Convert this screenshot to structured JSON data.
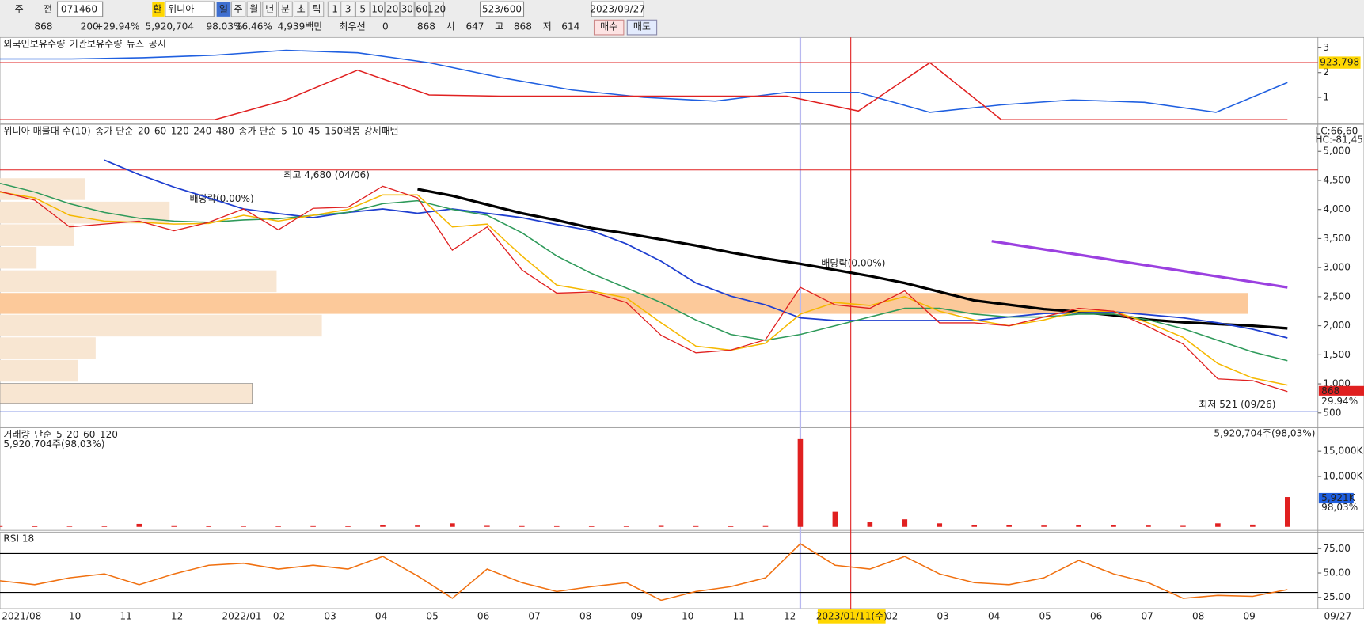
{
  "toolbar": {
    "row1": [
      "주",
      "전",
      "071460",
      "환",
      "위니아",
      "일",
      "주",
      "월",
      "년",
      "분",
      "초",
      "틱",
      "1",
      "3",
      "5",
      "10",
      "20",
      "30",
      "60",
      "120",
      "523/600",
      "2023/09/27"
    ],
    "row2": [
      "868",
      "200",
      "+29.94%",
      "5,920,704",
      "98.03%",
      "16.46%",
      "4,939백만",
      "최우선",
      "0",
      "868",
      "시",
      "647",
      "고",
      "868",
      "저",
      "614",
      "매수",
      "매도"
    ]
  },
  "x_axis": {
    "categories": [
      "2021/08",
      null,
      "10",
      "11",
      "12",
      "2022/01",
      "02",
      "03",
      "04",
      "05",
      "06",
      "07",
      "08",
      "09",
      "10",
      "11",
      "12",
      null,
      "02",
      "03",
      "04",
      "05",
      "06",
      "07",
      "08",
      "09"
    ],
    "cursor_label": "2023/01/11(수)",
    "end_label": "09/27"
  },
  "chart_data": [
    {
      "type": "line",
      "legend": [
        {
          "text": "외국인보유수량",
          "color": "#1f3fd0"
        },
        {
          "text": "기관보유수량",
          "color": "#e02020"
        },
        {
          "text": "뉴스",
          "color": "#888888"
        },
        {
          "text": "공시",
          "color": "#bbbbbb"
        }
      ],
      "ylim": [
        -0.05,
        3.42
      ],
      "yticks": [
        3,
        2,
        1
      ],
      "value_box": "923,798",
      "series": [
        {
          "color": "#1f5fe0",
          "values": [
            2.55,
            2.55,
            2.6,
            2.7,
            2.9,
            2.8,
            2.4,
            1.8,
            1.3,
            1.0,
            0.85,
            1.2,
            1.2,
            0.4,
            0.7,
            0.9,
            0.8,
            0.4,
            1.6
          ]
        },
        {
          "color": "#e02020",
          "values": [
            0.1,
            0.1,
            0.1,
            0.1,
            0.9,
            2.1,
            1.1,
            1.05,
            1.05,
            1.05,
            1.05,
            1.05,
            0.45,
            2.4,
            0.1,
            0.1,
            0.1,
            0.1,
            0.1
          ]
        }
      ]
    },
    {
      "type": "line",
      "legend": [
        {
          "text": "위니아 매물대 수(10)",
          "color": "#333333"
        },
        {
          "text": "종가 단순",
          "color": "#e02020"
        },
        {
          "text": "20",
          "color": "#f5b800"
        },
        {
          "text": "60",
          "color": "#2e9a5a"
        },
        {
          "text": "120",
          "color": "#1f3fd0"
        },
        {
          "text": "240",
          "color": "#000000"
        },
        {
          "text": "480",
          "color": "#b040e0"
        },
        {
          "text": "종가 단순",
          "color": "#e02020"
        },
        {
          "text": "5",
          "color": "#e02020"
        },
        {
          "text": "10",
          "color": "#1f3fd0"
        },
        {
          "text": "45",
          "color": "#f5b800"
        },
        {
          "text": "150억봉 강세패턴",
          "color": "#333333"
        }
      ],
      "ylim": [
        260,
        5465
      ],
      "yticks": [
        {
          "value": 5000,
          "label": "5,000"
        },
        {
          "value": 4500,
          "label": "4,500"
        },
        {
          "value": 4000,
          "label": "4,000"
        },
        {
          "value": 3500,
          "label": "3,500"
        },
        {
          "value": 3000,
          "label": "3,000"
        },
        {
          "value": 2500,
          "label": "2,500"
        },
        {
          "value": 2000,
          "label": "2,000"
        },
        {
          "value": 1500,
          "label": "1,500"
        },
        {
          "value": 1000,
          "label": "1,000"
        },
        500
      ],
      "corner_labels": [
        "LC:66,60",
        "HC:-81,45"
      ],
      "last_price": "868",
      "last_change": "29.94%",
      "series": [
        {
          "color": "#000000",
          "width": 3,
          "values": [
            null,
            null,
            null,
            null,
            null,
            null,
            null,
            null,
            null,
            null,
            null,
            null,
            4350,
            4235,
            4085,
            3935,
            3815,
            3680,
            3590,
            3485,
            3380,
            3260,
            3155,
            3065,
            2960,
            2855,
            2735,
            2585,
            2435,
            2360,
            2285,
            2240,
            2180,
            2105,
            2060,
            2030,
            2000,
            1955
          ]
        },
        {
          "color": "#1f3fd0",
          "width": 1.6,
          "values": [
            null,
            null,
            null,
            4850,
            4600,
            4385,
            4200,
            4010,
            3930,
            3860,
            3950,
            4010,
            3935,
            4010,
            3935,
            3860,
            3740,
            3635,
            3410,
            3110,
            2735,
            2510,
            2360,
            2135,
            2090,
            2090,
            2090,
            2090,
            2090,
            2150,
            2210,
            2220,
            2240,
            2190,
            2135,
            2050,
            1940,
            1790
          ]
        },
        {
          "color": "#2e9a5a",
          "width": 1.4,
          "values": [
            4450,
            4300,
            4100,
            3950,
            3850,
            3800,
            3780,
            3820,
            3840,
            3900,
            3950,
            4100,
            4150,
            4000,
            3900,
            3600,
            3200,
            2900,
            2650,
            2400,
            2100,
            1850,
            1750,
            1850,
            2000,
            2150,
            2300,
            2300,
            2200,
            2150,
            2150,
            2200,
            2200,
            2100,
            1950,
            1750,
            1550,
            1400
          ]
        },
        {
          "color": "#f5b800",
          "width": 1.4,
          "values": [
            4300,
            4200,
            3900,
            3800,
            3780,
            3750,
            3760,
            3900,
            3800,
            3900,
            4000,
            4250,
            4250,
            3700,
            3750,
            3200,
            2700,
            2600,
            2480,
            2050,
            1650,
            1580,
            1700,
            2200,
            2400,
            2350,
            2500,
            2250,
            2100,
            2000,
            2100,
            2250,
            2250,
            2050,
            1800,
            1350,
            1100,
            980
          ]
        },
        {
          "color": "#e02020",
          "width": 1.2,
          "values": [
            4310,
            4160,
            3700,
            3750,
            3800,
            3635,
            3780,
            4010,
            3650,
            4020,
            4040,
            4400,
            4200,
            3300,
            3700,
            2960,
            2560,
            2580,
            2400,
            1835,
            1535,
            1580,
            1760,
            2660,
            2360,
            2300,
            2600,
            2050,
            2050,
            2000,
            2150,
            2300,
            2250,
            1985,
            1685,
            1085,
            1055,
            868
          ]
        }
      ],
      "trendline": {
        "color": "#9b40e0",
        "values": [
          3455,
          2660
        ]
      },
      "hlines": [
        {
          "value": 4680,
          "color": "#e02020",
          "label": "최고 4,680 (04/06)"
        },
        {
          "value": 521,
          "color": "#1f3fd0",
          "label": "최저 521 (09/26)"
        }
      ],
      "annotations": [
        "배당락(0.00%)",
        "배당락(0.00%)"
      ]
    },
    {
      "type": "bar",
      "legend": [
        {
          "text": "거래량",
          "color": "#333333"
        },
        {
          "text": "단순",
          "color": "#e02020"
        },
        {
          "text": "5",
          "color": "#c020c0"
        },
        {
          "text": "20",
          "color": "#f5b800"
        },
        {
          "text": "60",
          "color": "#2e9a5a"
        },
        {
          "text": "120",
          "color": "#888888"
        }
      ],
      "info_left": "5,920,704주(98,03%)",
      "info_right": "5,920,704주(98,03%)",
      "ylim": [
        -690,
        19655
      ],
      "yticks": [
        {
          "value": 15000,
          "label": "15,000K"
        },
        {
          "value": 10000,
          "label": "10,000K"
        }
      ],
      "value_box": "5,921K",
      "value_pct": "98,03%",
      "values": [
        150,
        120,
        100,
        110,
        600,
        150,
        120,
        100,
        110,
        140,
        120,
        300,
        250,
        700,
        200,
        150,
        130,
        120,
        110,
        200,
        140,
        120,
        160,
        17400,
        3000,
        900,
        1500,
        700,
        400,
        300,
        250,
        350,
        300,
        250,
        200,
        700,
        450,
        5920.704
      ],
      "color": "#e02020"
    },
    {
      "type": "line",
      "legend": [
        {
          "text": "RSI 18",
          "color": "#e02020"
        }
      ],
      "ylim": [
        13.4,
        92
      ],
      "yticks": [
        {
          "value": 75,
          "label": "75.00"
        },
        {
          "value": 50,
          "label": "50.00"
        },
        {
          "value": 25,
          "label": "25.00"
        }
      ],
      "hlines": [
        70,
        30
      ],
      "series": [
        {
          "color": "#f07010",
          "width": 1.4,
          "values": [
            42,
            38,
            45,
            49,
            38,
            49,
            58,
            60,
            54,
            58,
            54,
            67,
            47,
            24,
            54,
            40,
            31,
            36,
            40,
            22,
            31,
            36,
            45,
            80,
            58,
            54,
            67,
            49,
            40,
            38,
            45,
            63,
            49,
            40,
            24,
            27,
            26,
            33
          ]
        }
      ]
    }
  ]
}
